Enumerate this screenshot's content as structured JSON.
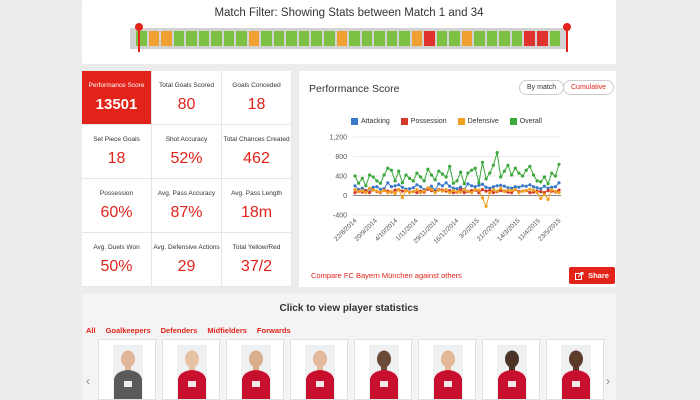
{
  "filter": {
    "title": "Match Filter: Showing Stats between Match 1 and 34",
    "results": [
      "g",
      "o",
      "o",
      "g",
      "g",
      "g",
      "g",
      "g",
      "g",
      "o",
      "g",
      "g",
      "g",
      "g",
      "g",
      "g",
      "o",
      "g",
      "g",
      "g",
      "g",
      "g",
      "o",
      "r",
      "g",
      "g",
      "o",
      "g",
      "g",
      "g",
      "g",
      "r",
      "r",
      "g"
    ],
    "result_colors": {
      "g": "#7dc142",
      "o": "#f0a030",
      "r": "#e0322c"
    }
  },
  "stats": [
    {
      "label": "Performance Score",
      "value": "13501",
      "highlight": true
    },
    {
      "label": "Total Goals Scored",
      "value": "80"
    },
    {
      "label": "Goals Conceded",
      "value": "18"
    },
    {
      "label": "Set Piece Goals",
      "value": "18"
    },
    {
      "label": "Shot Accuracy",
      "value": "52%"
    },
    {
      "label": "Total Chances Created",
      "value": "462"
    },
    {
      "label": "Possession",
      "value": "60%"
    },
    {
      "label": "Avg. Pass Accuracy",
      "value": "87%"
    },
    {
      "label": "Avg. Pass Length",
      "value": "18m"
    },
    {
      "label": "Avg. Duels Won",
      "value": "50%"
    },
    {
      "label": "Avg. Defensive Actions",
      "value": "29"
    },
    {
      "label": "Total Yellow/Red",
      "value": "37/2"
    }
  ],
  "chart_panel": {
    "title": "Performance Score",
    "toggle_by_match": "By match",
    "toggle_cumulative": "Cumulative",
    "compare_link": "Compare FC Bayern München against others",
    "share_label": "Share"
  },
  "chart_data": {
    "type": "line",
    "ylim": [
      -400,
      1200
    ],
    "yticks": [
      "1,200",
      "800",
      "400",
      "0",
      "-400"
    ],
    "ytick_values": [
      1200,
      800,
      400,
      0,
      -400
    ],
    "xtick_labels": [
      "22/8/2014",
      "20/9/2014",
      "4/10/2014",
      "1/11/2014",
      "29/11/2014",
      "16/12/2014",
      "3/2/2015",
      "21/2/2015",
      "14/3/2015",
      "11/4/2015",
      "23/5/2015"
    ],
    "series": [
      {
        "name": "Attacking",
        "color": "#3a78c9",
        "values": [
          200,
          120,
          150,
          100,
          130,
          170,
          180,
          130,
          140,
          260,
          180,
          200,
          220,
          170,
          130,
          140,
          160,
          220,
          180,
          120,
          150,
          190,
          110,
          240,
          200,
          260,
          190,
          150,
          140,
          170,
          120,
          240,
          200,
          180,
          210,
          230,
          170,
          150,
          180,
          200,
          210,
          190,
          160,
          150,
          180,
          170,
          200,
          190,
          220,
          180,
          160,
          140,
          190,
          150,
          170,
          180,
          260
        ]
      },
      {
        "name": "Possession",
        "color": "#d43a2a",
        "values": [
          60,
          90,
          70,
          100,
          60,
          120,
          80,
          60,
          110,
          90,
          70,
          110,
          120,
          90,
          100,
          70,
          80,
          60,
          90,
          70,
          130,
          100,
          80,
          120,
          110,
          90,
          100,
          60,
          70,
          120,
          60,
          80,
          100,
          110,
          60,
          120,
          90,
          100,
          60,
          80,
          100,
          90,
          70,
          60,
          120,
          80,
          90,
          100,
          60,
          70,
          90,
          80,
          60,
          100,
          90,
          70,
          110
        ]
      },
      {
        "name": "Defensive",
        "color": "#f0a020",
        "values": [
          120,
          80,
          100,
          60,
          150,
          110,
          90,
          70,
          100,
          60,
          80,
          40,
          120,
          -40,
          100,
          60,
          80,
          120,
          60,
          90,
          160,
          130,
          60,
          110,
          90,
          120,
          60,
          100,
          80,
          70,
          130,
          90,
          60,
          120,
          110,
          -50,
          -220,
          60,
          120,
          90,
          150,
          80,
          110,
          100,
          120,
          60,
          90,
          100,
          130,
          110,
          60,
          -60,
          20,
          -80,
          120,
          80,
          60
        ]
      },
      {
        "name": "Overall",
        "color": "#3aa83a",
        "values": [
          400,
          250,
          350,
          200,
          420,
          380,
          300,
          250,
          420,
          560,
          520,
          300,
          500,
          260,
          420,
          350,
          300,
          460,
          380,
          300,
          540,
          420,
          320,
          500,
          440,
          380,
          600,
          250,
          300,
          480,
          240,
          460,
          520,
          560,
          260,
          680,
          340,
          460,
          620,
          880,
          380,
          500,
          620,
          420,
          560,
          460,
          400,
          520,
          600,
          420,
          300,
          280,
          380,
          240,
          460,
          400,
          640
        ]
      }
    ]
  },
  "players_panel": {
    "title": "Click to view player statistics",
    "categories": [
      "All",
      "Goalkeepers",
      "Defenders",
      "Midfielders",
      "Forwards"
    ],
    "prev": "‹",
    "next": "›",
    "players": [
      {
        "kit": "#5a5a5a",
        "skin": "#e0b79a"
      },
      {
        "kit": "#c8102e",
        "skin": "#e6c2a4"
      },
      {
        "kit": "#c8102e",
        "skin": "#d9ae8c"
      },
      {
        "kit": "#c8102e",
        "skin": "#e3bb9c"
      },
      {
        "kit": "#c8102e",
        "skin": "#6b4a36"
      },
      {
        "kit": "#c8102e",
        "skin": "#e2b898"
      },
      {
        "kit": "#c8102e",
        "skin": "#4a3226"
      },
      {
        "kit": "#c8102e",
        "skin": "#5b3b2a"
      }
    ]
  }
}
